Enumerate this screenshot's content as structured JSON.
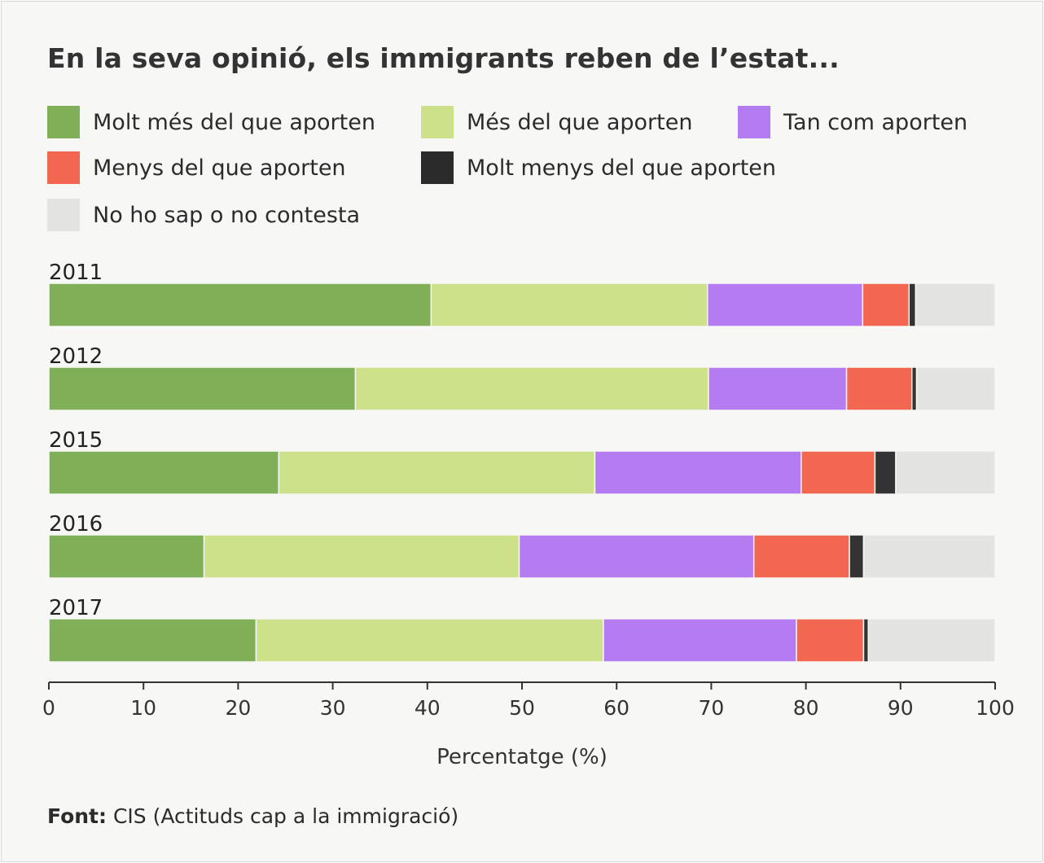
{
  "chart_data": {
    "type": "bar",
    "orientation": "horizontal",
    "stacked": true,
    "title": "En la seva opinió, els immigrants reben de l’estat...",
    "categories": [
      "2011",
      "2012",
      "2015",
      "2016",
      "2017"
    ],
    "series": [
      {
        "name": "Molt més del que aporten",
        "color": "#7fb058",
        "values": [
          40.4,
          32.4,
          24.3,
          16.4,
          21.9
        ]
      },
      {
        "name": "Més del que aporten",
        "color": "#cde08a",
        "values": [
          29.2,
          37.3,
          33.4,
          33.3,
          36.7
        ]
      },
      {
        "name": "Tan com aporten",
        "color": "#b57bf0",
        "values": [
          16.4,
          14.6,
          21.8,
          24.8,
          20.4
        ]
      },
      {
        "name": "Menys del que aporten",
        "color": "#f2674f",
        "values": [
          4.9,
          6.9,
          7.8,
          10.1,
          7.1
        ]
      },
      {
        "name": "Molt menys del que aporten",
        "color": "#333333",
        "values": [
          0.7,
          0.5,
          2.2,
          1.5,
          0.5
        ]
      },
      {
        "name": "No ho sap o no contesta",
        "color": "#e3e3e1",
        "values": [
          8.4,
          8.3,
          10.5,
          13.9,
          13.4
        ]
      }
    ],
    "xlabel": "Percentatge (%)",
    "xlim": [
      0,
      100
    ],
    "xticks": [
      "0",
      "10",
      "20",
      "30",
      "40",
      "50",
      "60",
      "70",
      "80",
      "90",
      "100"
    ],
    "grid": false,
    "legend_position": "top"
  },
  "source": {
    "label": "Font:",
    "text": " CIS (Actituds cap a la immigració)"
  }
}
